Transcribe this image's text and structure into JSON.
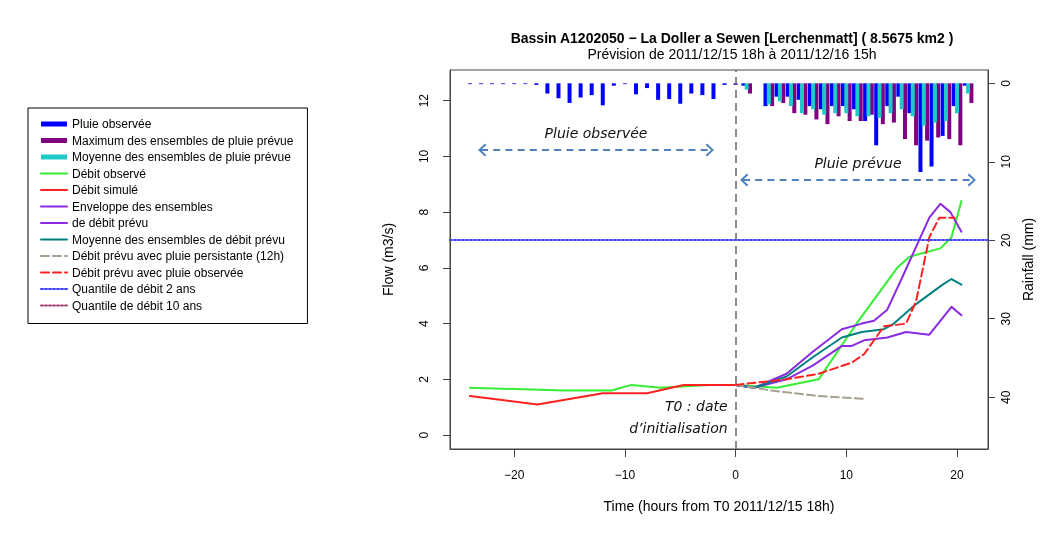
{
  "chart_data": {
    "type": "line",
    "title": "Bassin A1202050 − La Doller a Sewen [Lerchenmatt] ( 8.5675 km2 )",
    "subtitle": "Prévision de 2011/12/15 18h à 2011/12/16 15h",
    "xlabel": "Time (hours from T0 2011/12/15 18h)",
    "ylabel": "Flow (m3/s)",
    "y2label": "Rainfall (mm)",
    "xlim": [
      -25.8,
      22.8
    ],
    "xticks": [
      -20,
      -10,
      0,
      10,
      20
    ],
    "ylim": [
      -0.5,
      13.1
    ],
    "yticks": [
      0,
      2,
      4,
      6,
      8,
      10,
      12
    ],
    "y2lim": [
      46.6,
      -1.7
    ],
    "y2ticks": [
      0,
      10,
      20,
      30,
      40
    ],
    "legend": "left",
    "marker": "none",
    "series": [
      {
        "name": "Pluie observée",
        "type": "bar",
        "axis": "y2",
        "color": "#0000ff",
        "x": [
          -24,
          -23,
          -22,
          -21,
          -20,
          -19,
          -18,
          -17,
          -16,
          -15,
          -14,
          -13,
          -12,
          -11,
          -10,
          -9,
          -8,
          -7,
          -6,
          -5,
          -4,
          -3,
          -2,
          -1,
          0,
          0.7,
          2.7,
          3.7,
          4.7,
          5.7,
          6.7,
          7.7,
          8.7,
          9.7,
          10.7,
          11.7,
          12.7,
          13.7,
          14.7,
          15.7,
          16.7,
          17.7,
          18.7,
          19.7,
          20.7
        ],
        "values": [
          0.1,
          0.1,
          0.1,
          0.1,
          0.1,
          0.1,
          0.2,
          1.3,
          1.9,
          2.5,
          1.8,
          1.5,
          2.8,
          0.3,
          0.1,
          1.4,
          0.6,
          2.1,
          2.0,
          2.6,
          1.3,
          1.5,
          2.0,
          0.2,
          0.2,
          0.3,
          2.9,
          1.7,
          1.7,
          2.1,
          2.9,
          3.3,
          2.9,
          2.9,
          3.3,
          4.8,
          7.9,
          2.9,
          1.7,
          3.8,
          11.3,
          10.6,
          6.7,
          2.9,
          0.3
        ]
      },
      {
        "name": "Maximum des ensembles de pluie prévue",
        "type": "bar",
        "axis": "y2",
        "color": "#800080",
        "x": [
          1.3,
          3.3,
          4.3,
          5.3,
          6.3,
          7.3,
          8.3,
          9.3,
          10.3,
          11.3,
          12.3,
          13.3,
          14.3,
          15.3,
          16.3,
          17.3,
          18.3,
          19.3,
          20.3,
          21.3
        ],
        "values": [
          1.3,
          2.9,
          2.5,
          3.8,
          4.0,
          4.6,
          5.2,
          4.2,
          4.8,
          4.8,
          4.0,
          5.2,
          5.0,
          7.1,
          7.9,
          7.3,
          6.9,
          7.1,
          7.9,
          2.5
        ]
      },
      {
        "name": "Moyenne des ensembles de pluie prévue",
        "type": "bar",
        "axis": "y2",
        "color": "#20c8c8",
        "x": [
          1,
          3,
          4,
          5,
          6,
          7,
          8,
          9,
          10,
          11,
          12,
          13,
          14,
          15,
          16,
          17,
          18,
          19,
          20,
          21
        ],
        "values": [
          0.8,
          2.7,
          2.3,
          2.9,
          3.8,
          3.3,
          4.0,
          3.8,
          3.8,
          4.2,
          4.2,
          4.4,
          3.8,
          3.3,
          4.2,
          5.4,
          5.0,
          4.8,
          3.8,
          1.3
        ]
      },
      {
        "name": "Débit observé",
        "color": "#33ee33",
        "x": [
          -24,
          -15.5,
          -11.2,
          -9.4,
          -6.8,
          -2.4,
          0,
          3.7,
          7.5,
          11.1,
          14.6,
          15.7,
          18.5,
          19.5,
          20.4
        ],
        "values": [
          1.7,
          1.6,
          1.6,
          1.8,
          1.7,
          1.8,
          1.8,
          1.7,
          2.0,
          4.1,
          6.0,
          6.4,
          6.7,
          7.1,
          8.4
        ]
      },
      {
        "name": "Débit simulé",
        "color": "#ff2020",
        "x": [
          -24,
          -17.9,
          -12,
          -10,
          -8,
          -4.7,
          -2.4,
          0
        ],
        "values": [
          1.4,
          1.1,
          1.5,
          1.5,
          1.5,
          1.8,
          1.8,
          1.8
        ]
      },
      {
        "name": "Enveloppe des ensembles",
        "color": "#8a2be2",
        "x": [
          0,
          1.7,
          4.6,
          7.0,
          9.6,
          11.4,
          12.5,
          13.7,
          15.1,
          17.5,
          18.5,
          19.4,
          20.4
        ],
        "values": [
          1.8,
          1.7,
          2.2,
          3.0,
          3.8,
          4.0,
          4.1,
          4.5,
          5.7,
          7.8,
          8.3,
          8.0,
          7.3
        ]
      },
      {
        "name": "de débit prévu",
        "color": "#8a2be2",
        "x": [
          0,
          1.7,
          4.6,
          7.0,
          9.6,
          10.5,
          11.6,
          13.7,
          15.4,
          17.5,
          19.5,
          20.4
        ],
        "values": [
          1.8,
          1.7,
          2.0,
          2.5,
          3.2,
          3.2,
          3.4,
          3.5,
          3.7,
          3.6,
          4.6,
          4.3
        ]
      },
      {
        "name": "Moyenne des ensembles de débit prévu",
        "color": "#008080",
        "x": [
          0,
          1.7,
          4.6,
          7.0,
          9.6,
          11.4,
          13.4,
          14.3,
          16.3,
          18.7,
          19.5,
          20.4
        ],
        "values": [
          1.8,
          1.7,
          2.1,
          2.8,
          3.5,
          3.7,
          3.8,
          4.0,
          4.7,
          5.4,
          5.6,
          5.4
        ]
      },
      {
        "name": "Débit prévu avec pluie persistante (12h)",
        "color": "#a8a090",
        "line_style": "dashed",
        "x": [
          0,
          3.2,
          7.5,
          11.6
        ],
        "values": [
          1.8,
          1.6,
          1.4,
          1.3
        ]
      },
      {
        "name": "Débit prévu avec pluie observée",
        "color": "#ff2020",
        "line_style": "dashed",
        "x": [
          0,
          4.6,
          7.5,
          10.5,
          11.6,
          13.4,
          15.4,
          16.3,
          17.5,
          18.4,
          19.8
        ],
        "values": [
          1.8,
          2.0,
          2.2,
          2.6,
          2.9,
          3.9,
          4.0,
          4.8,
          7.1,
          7.8,
          7.8
        ]
      },
      {
        "name": "Quantile de débit 2 ans",
        "color": "#4040ff",
        "line_style": "dotted",
        "x": [
          -25.8,
          22.8
        ],
        "values": [
          7,
          7
        ]
      },
      {
        "name": "Quantile de débit 10 ans",
        "color": "#a04070",
        "line_style": "dotted"
      }
    ],
    "ref_lines": [
      {
        "axis": "x",
        "value": 0,
        "color": "#666666",
        "line_style": "dashed"
      }
    ],
    "annotations": [
      "Pluie observée",
      "Pluie prévue",
      "T0 : date\nd’initialisation"
    ]
  }
}
